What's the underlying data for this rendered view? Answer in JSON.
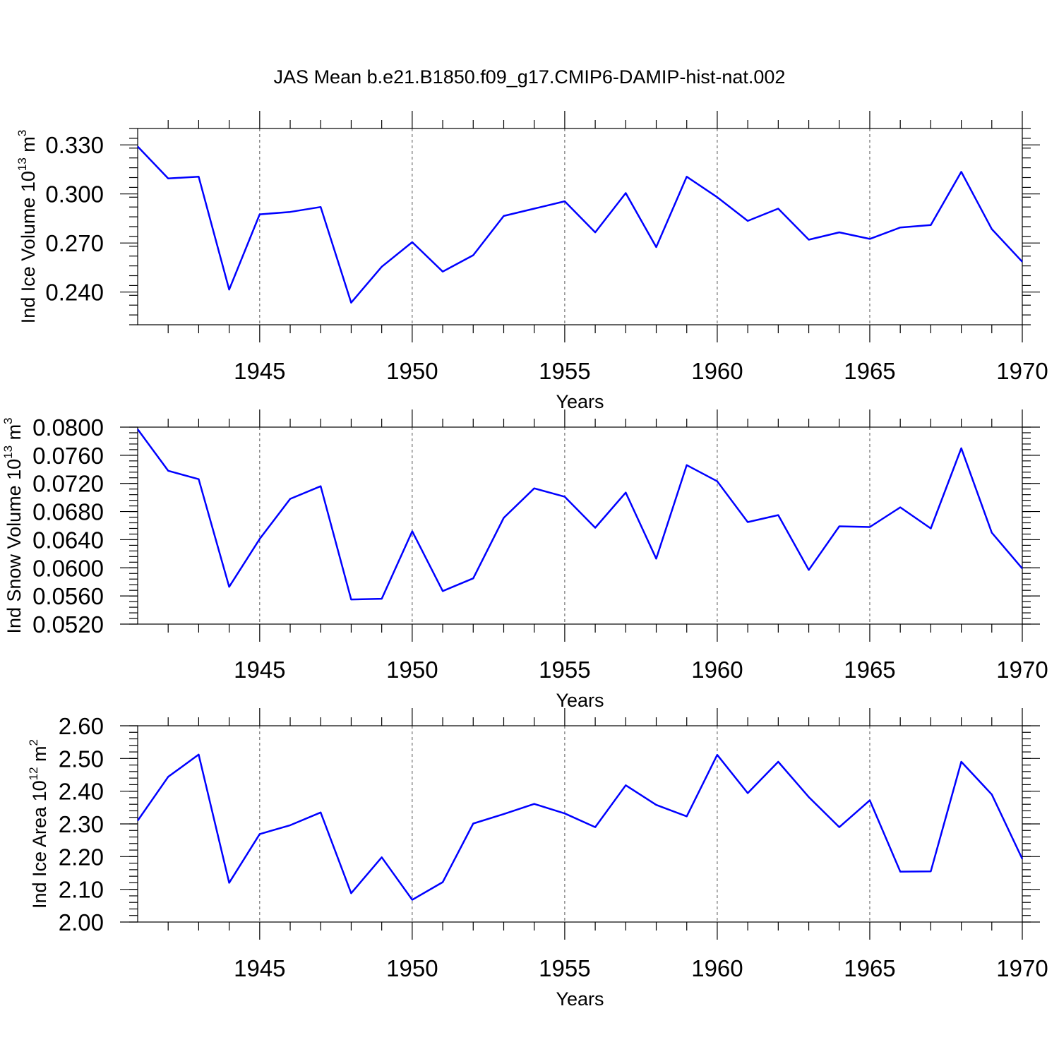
{
  "figure": {
    "title": "JAS Mean b.e21.B1850.f09_g17.CMIP6-DAMIP-hist-nat.002"
  },
  "chart_data": [
    {
      "type": "line",
      "id": "ice-volume",
      "title": "",
      "xlabel": "Years",
      "ylabel": "Ind Ice Volume 10",
      "ylabel_exp": "13",
      "ylabel_unit": " m",
      "ylabel_unit_exp": "3",
      "xlim": [
        1941,
        1970
      ],
      "ylim": [
        0.22,
        0.34
      ],
      "yticks": [
        0.24,
        0.27,
        0.3,
        0.33
      ],
      "ytick_labels": [
        "0.240",
        "0.270",
        "0.300",
        "0.330"
      ],
      "yminor_step": 0.006,
      "xticks": [
        1945,
        1950,
        1955,
        1960,
        1965,
        1970
      ],
      "xtick_labels": [
        "1945",
        "1950",
        "1955",
        "1960",
        "1965",
        "1970"
      ],
      "grid_x": true,
      "line_color": "#0000ff",
      "series": [
        {
          "name": "Ind Ice Volume",
          "x": [
            1941,
            1942,
            1943,
            1944,
            1945,
            1946,
            1947,
            1948,
            1949,
            1950,
            1951,
            1952,
            1953,
            1954,
            1955,
            1956,
            1957,
            1958,
            1959,
            1960,
            1961,
            1962,
            1963,
            1964,
            1965,
            1966,
            1967,
            1968,
            1969,
            1970
          ],
          "values": [
            0.329,
            0.3095,
            0.3105,
            0.2415,
            0.2875,
            0.289,
            0.292,
            0.2335,
            0.2555,
            0.2705,
            0.2525,
            0.2625,
            0.2865,
            0.291,
            0.2955,
            0.2765,
            0.3005,
            0.2675,
            0.3105,
            0.298,
            0.2835,
            0.291,
            0.272,
            0.2765,
            0.2725,
            0.2795,
            0.281,
            0.3135,
            0.2785,
            0.2585
          ]
        }
      ]
    },
    {
      "type": "line",
      "id": "snow-volume",
      "title": "",
      "xlabel": "Years",
      "ylabel": "Ind Snow Volume 10",
      "ylabel_exp": "13",
      "ylabel_unit": " m",
      "ylabel_unit_exp": "3",
      "xlim": [
        1941,
        1970
      ],
      "ylim": [
        0.052,
        0.08
      ],
      "yticks": [
        0.052,
        0.056,
        0.06,
        0.064,
        0.068,
        0.072,
        0.076,
        0.08
      ],
      "ytick_labels": [
        "0.0520",
        "0.0560",
        "0.0600",
        "0.0640",
        "0.0680",
        "0.0720",
        "0.0760",
        "0.0800"
      ],
      "yminor_step": 0.0008,
      "xticks": [
        1945,
        1950,
        1955,
        1960,
        1965,
        1970
      ],
      "xtick_labels": [
        "1945",
        "1950",
        "1955",
        "1960",
        "1965",
        "1970"
      ],
      "grid_x": true,
      "line_color": "#0000ff",
      "series": [
        {
          "name": "Ind Snow Volume",
          "x": [
            1941,
            1942,
            1943,
            1944,
            1945,
            1946,
            1947,
            1948,
            1949,
            1950,
            1951,
            1952,
            1953,
            1954,
            1955,
            1956,
            1957,
            1958,
            1959,
            1960,
            1961,
            1962,
            1963,
            1964,
            1965,
            1966,
            1967,
            1968,
            1969,
            1970
          ],
          "values": [
            0.0797,
            0.0738,
            0.0726,
            0.0573,
            0.0641,
            0.0698,
            0.0716,
            0.0555,
            0.0556,
            0.0652,
            0.0567,
            0.0585,
            0.0671,
            0.0713,
            0.0701,
            0.0657,
            0.0707,
            0.0613,
            0.0746,
            0.0723,
            0.0665,
            0.0675,
            0.0597,
            0.0659,
            0.0658,
            0.0686,
            0.0656,
            0.077,
            0.065,
            0.0599
          ]
        }
      ]
    },
    {
      "type": "line",
      "id": "ice-area",
      "title": "",
      "xlabel": "Years",
      "ylabel": "Ind Ice Area 10",
      "ylabel_exp": "12",
      "ylabel_unit": " m",
      "ylabel_unit_exp": "2",
      "xlim": [
        1941,
        1970
      ],
      "ylim": [
        2.0,
        2.6
      ],
      "yticks": [
        2.0,
        2.1,
        2.2,
        2.3,
        2.4,
        2.5,
        2.6
      ],
      "ytick_labels": [
        "2.00",
        "2.10",
        "2.20",
        "2.30",
        "2.40",
        "2.50",
        "2.60"
      ],
      "yminor_step": 0.02,
      "xticks": [
        1945,
        1950,
        1955,
        1960,
        1965,
        1970
      ],
      "xtick_labels": [
        "1945",
        "1950",
        "1955",
        "1960",
        "1965",
        "1970"
      ],
      "grid_x": true,
      "line_color": "#0000ff",
      "series": [
        {
          "name": "Ind Ice Area",
          "x": [
            1941,
            1942,
            1943,
            1944,
            1945,
            1946,
            1947,
            1948,
            1949,
            1950,
            1951,
            1952,
            1953,
            1954,
            1955,
            1956,
            1957,
            1958,
            1959,
            1960,
            1961,
            1962,
            1963,
            1964,
            1965,
            1966,
            1967,
            1968,
            1969,
            1970
          ],
          "values": [
            2.31,
            2.444,
            2.512,
            2.12,
            2.269,
            2.296,
            2.335,
            2.088,
            2.198,
            2.068,
            2.122,
            2.301,
            2.33,
            2.361,
            2.332,
            2.29,
            2.418,
            2.358,
            2.323,
            2.511,
            2.394,
            2.49,
            2.382,
            2.29,
            2.372,
            2.154,
            2.155,
            2.49,
            2.39,
            2.193
          ]
        }
      ]
    }
  ]
}
